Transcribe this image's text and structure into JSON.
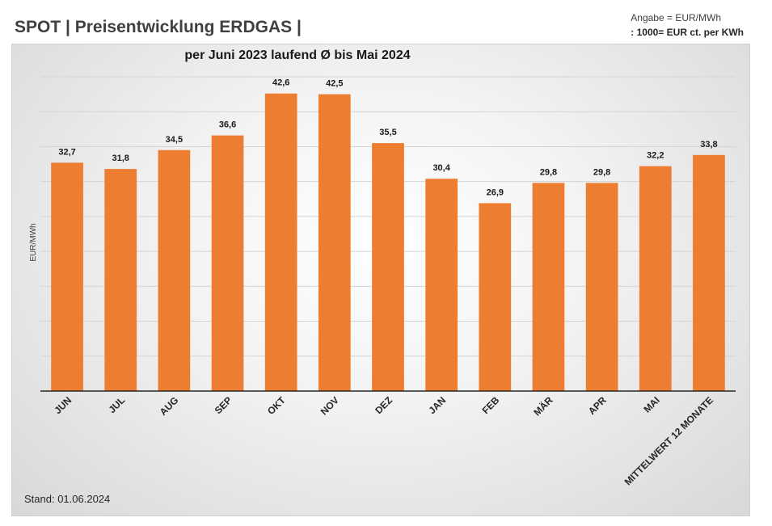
{
  "page": {
    "title": "SPOT | Preisentwicklung ERDGAS |",
    "unit_note_line1": "Angabe = EUR/MWh",
    "unit_note_line2": ": 1000= EUR ct. per KWh",
    "footer_stand": "Stand: 01.06.2024"
  },
  "chart_data": {
    "type": "bar",
    "title": "per Juni 2023 laufend Ø bis Mai 2024",
    "xlabel": "",
    "ylabel": "EUR/MWh",
    "categories": [
      "JUN",
      "JUL",
      "AUG",
      "SEP",
      "OKT",
      "NOV",
      "DEZ",
      "JAN",
      "FEB",
      "MÄR",
      "APR",
      "MAI",
      "MITTELWERT 12 MONATE"
    ],
    "values": [
      32.7,
      31.8,
      34.5,
      36.6,
      42.6,
      42.5,
      35.5,
      30.4,
      26.9,
      29.8,
      29.8,
      32.2,
      33.8
    ],
    "value_labels": [
      "32,7",
      "31,8",
      "34,5",
      "36,6",
      "42,6",
      "42,5",
      "35,5",
      "30,4",
      "26,9",
      "29,8",
      "29,8",
      "32,2",
      "33,8"
    ],
    "ylim": [
      0,
      45
    ],
    "grid": true,
    "legend": "none",
    "bar_color": "#ed7d31"
  }
}
